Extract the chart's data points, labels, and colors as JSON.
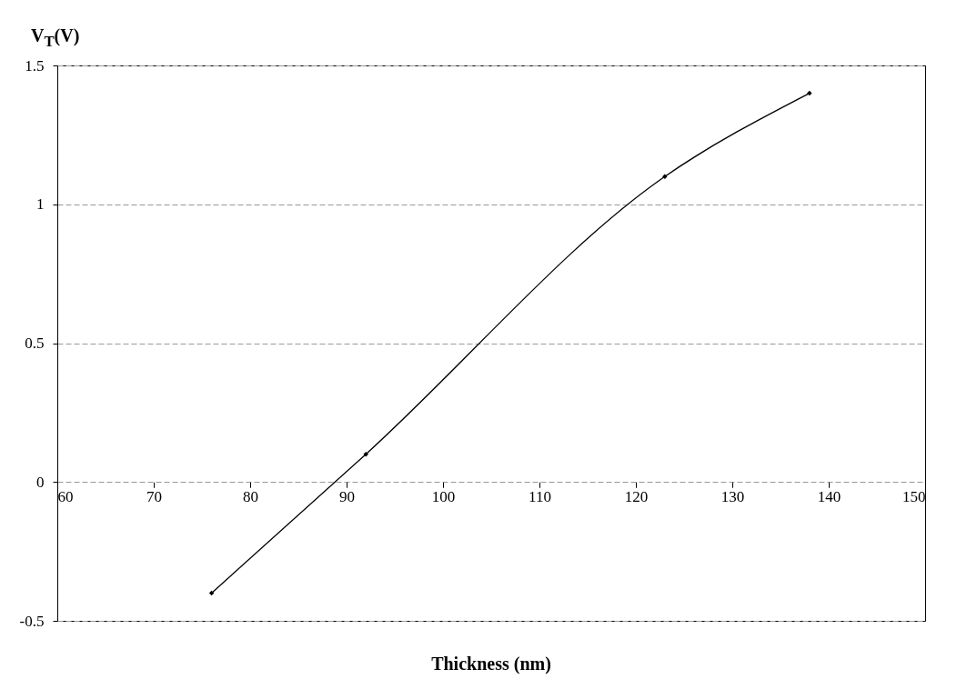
{
  "chart_data": {
    "type": "line",
    "xlabel": "Thickness (nm)",
    "ylabel": "V$_{T}$(V)",
    "x": [
      76,
      92,
      123,
      138
    ],
    "series": [
      {
        "color": "#000000",
        "values": [
          -0.4,
          0.1,
          1.1,
          1.4
        ]
      }
    ],
    "xlim": [
      60,
      150
    ],
    "xticks": [
      60,
      70,
      80,
      90,
      100,
      110,
      120,
      130,
      140,
      150
    ],
    "ylim": [
      -0.5,
      1.5
    ],
    "yticks": [
      -0.5,
      0,
      0.5,
      1,
      1.5
    ],
    "grid": "y",
    "marker": "diamond",
    "line_style": "solid",
    "legend": false
  }
}
